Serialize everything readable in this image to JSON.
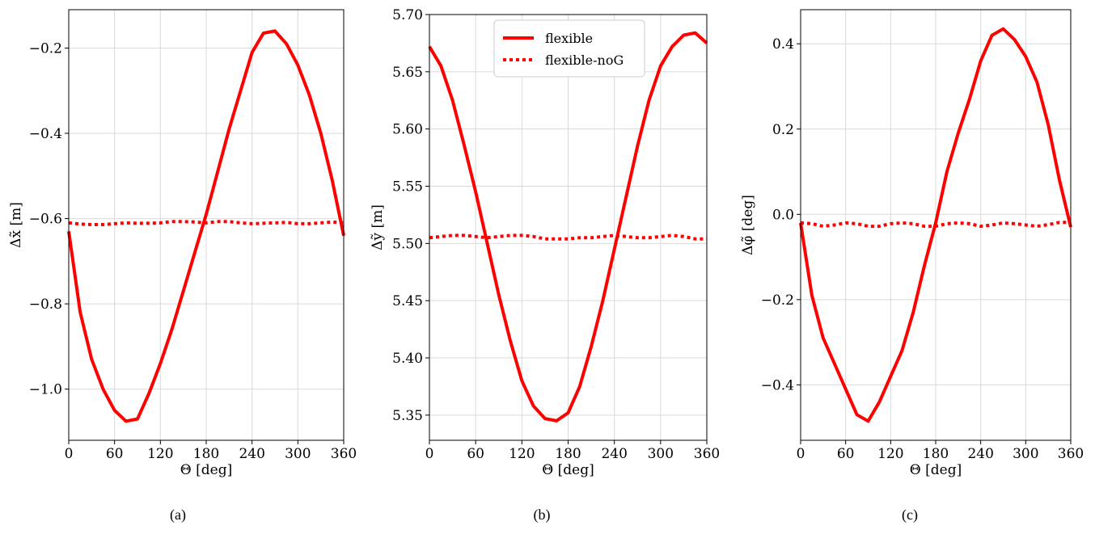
{
  "chart_data": [
    {
      "type": "line",
      "caption": "(a)",
      "xlabel": "Θ [deg]",
      "ylabel": "Δx̃ [m]",
      "xlim": [
        0,
        360
      ],
      "ylim": [
        -1.12,
        -0.11
      ],
      "xticks": [
        0,
        60,
        120,
        180,
        240,
        300,
        360
      ],
      "yticks": [
        -1.0,
        -0.8,
        -0.6,
        -0.4,
        -0.2
      ],
      "ytick_labels": [
        "−1.0",
        "−0.8",
        "−0.6",
        "−0.4",
        "−0.2"
      ],
      "grid": true,
      "series": [
        {
          "style": "solid",
          "color": "#ff0000",
          "x": [
            0,
            15,
            30,
            45,
            60,
            75,
            90,
            105,
            120,
            135,
            150,
            165,
            180,
            195,
            210,
            225,
            240,
            255,
            270,
            285,
            300,
            315,
            330,
            345,
            360
          ],
          "y": [
            -0.63,
            -0.82,
            -0.93,
            -1.0,
            -1.05,
            -1.075,
            -1.07,
            -1.01,
            -0.94,
            -0.86,
            -0.77,
            -0.68,
            -0.59,
            -0.49,
            -0.39,
            -0.3,
            -0.21,
            -0.165,
            -0.16,
            -0.19,
            -0.24,
            -0.31,
            -0.4,
            -0.51,
            -0.64
          ]
        },
        {
          "style": "dotted",
          "color": "#ff0000",
          "x": [
            0,
            15,
            30,
            45,
            60,
            75,
            90,
            105,
            120,
            135,
            150,
            165,
            180,
            195,
            210,
            225,
            240,
            255,
            270,
            285,
            300,
            315,
            330,
            345,
            360
          ],
          "y": [
            -0.61,
            -0.613,
            -0.614,
            -0.614,
            -0.612,
            -0.61,
            -0.611,
            -0.611,
            -0.61,
            -0.607,
            -0.607,
            -0.608,
            -0.61,
            -0.607,
            -0.607,
            -0.61,
            -0.612,
            -0.611,
            -0.61,
            -0.609,
            -0.612,
            -0.612,
            -0.61,
            -0.608,
            -0.61
          ]
        }
      ]
    },
    {
      "type": "line",
      "caption": "(b)",
      "xlabel": "Θ [deg]",
      "ylabel": "Δỹ [m]",
      "xlim": [
        0,
        360
      ],
      "ylim": [
        5.328,
        5.7
      ],
      "xticks": [
        0,
        60,
        120,
        180,
        240,
        300,
        360
      ],
      "yticks": [
        5.35,
        5.4,
        5.45,
        5.5,
        5.55,
        5.6,
        5.65,
        5.7
      ],
      "ytick_labels": [
        "5.35",
        "5.40",
        "5.45",
        "5.50",
        "5.55",
        "5.60",
        "5.65",
        "5.70"
      ],
      "grid": true,
      "legend": {
        "position": "top-center",
        "entries": [
          {
            "label": "flexible",
            "style": "solid"
          },
          {
            "label": "flexible-noG",
            "style": "dotted"
          }
        ]
      },
      "series": [
        {
          "name": "flexible",
          "style": "solid",
          "color": "#ff0000",
          "x": [
            0,
            15,
            30,
            45,
            60,
            75,
            90,
            105,
            120,
            135,
            150,
            165,
            180,
            195,
            210,
            225,
            240,
            255,
            270,
            285,
            300,
            315,
            330,
            345,
            360
          ],
          "y": [
            5.672,
            5.655,
            5.625,
            5.586,
            5.545,
            5.5,
            5.455,
            5.415,
            5.38,
            5.358,
            5.347,
            5.345,
            5.352,
            5.375,
            5.41,
            5.45,
            5.495,
            5.54,
            5.585,
            5.625,
            5.655,
            5.672,
            5.682,
            5.684,
            5.675
          ]
        },
        {
          "name": "flexible-noG",
          "style": "dotted",
          "color": "#ff0000",
          "x": [
            0,
            15,
            30,
            45,
            60,
            75,
            90,
            105,
            120,
            135,
            150,
            165,
            180,
            195,
            210,
            225,
            240,
            255,
            270,
            285,
            300,
            315,
            330,
            345,
            360
          ],
          "y": [
            5.505,
            5.506,
            5.507,
            5.507,
            5.506,
            5.505,
            5.506,
            5.507,
            5.507,
            5.506,
            5.504,
            5.504,
            5.504,
            5.505,
            5.505,
            5.506,
            5.507,
            5.506,
            5.505,
            5.505,
            5.506,
            5.507,
            5.506,
            5.504,
            5.504
          ]
        }
      ]
    },
    {
      "type": "line",
      "caption": "(c)",
      "xlabel": "Θ [deg]",
      "ylabel": "Δφ̃ [deg]",
      "xlim": [
        0,
        360
      ],
      "ylim": [
        -0.53,
        0.48
      ],
      "xticks": [
        0,
        60,
        120,
        180,
        240,
        300,
        360
      ],
      "yticks": [
        -0.4,
        -0.2,
        0.0,
        0.2,
        0.4
      ],
      "ytick_labels": [
        "−0.4",
        "−0.2",
        "0.0",
        "0.2",
        "0.4"
      ],
      "grid": true,
      "series": [
        {
          "style": "solid",
          "color": "#ff0000",
          "x": [
            0,
            15,
            30,
            45,
            60,
            75,
            90,
            105,
            120,
            135,
            150,
            165,
            180,
            195,
            210,
            225,
            240,
            255,
            270,
            285,
            300,
            315,
            330,
            345,
            360
          ],
          "y": [
            -0.02,
            -0.19,
            -0.29,
            -0.35,
            -0.41,
            -0.47,
            -0.485,
            -0.44,
            -0.38,
            -0.32,
            -0.23,
            -0.12,
            -0.02,
            0.1,
            0.19,
            0.27,
            0.36,
            0.42,
            0.435,
            0.41,
            0.37,
            0.31,
            0.21,
            0.08,
            -0.03
          ]
        },
        {
          "style": "dotted",
          "color": "#ff0000",
          "x": [
            0,
            15,
            30,
            45,
            60,
            75,
            90,
            105,
            120,
            135,
            150,
            165,
            180,
            195,
            210,
            225,
            240,
            255,
            270,
            285,
            300,
            315,
            330,
            345,
            360
          ],
          "y": [
            -0.02,
            -0.022,
            -0.028,
            -0.025,
            -0.02,
            -0.022,
            -0.028,
            -0.028,
            -0.022,
            -0.02,
            -0.022,
            -0.028,
            -0.028,
            -0.022,
            -0.02,
            -0.022,
            -0.028,
            -0.025,
            -0.02,
            -0.022,
            -0.025,
            -0.028,
            -0.024,
            -0.019,
            -0.019
          ]
        }
      ]
    }
  ]
}
